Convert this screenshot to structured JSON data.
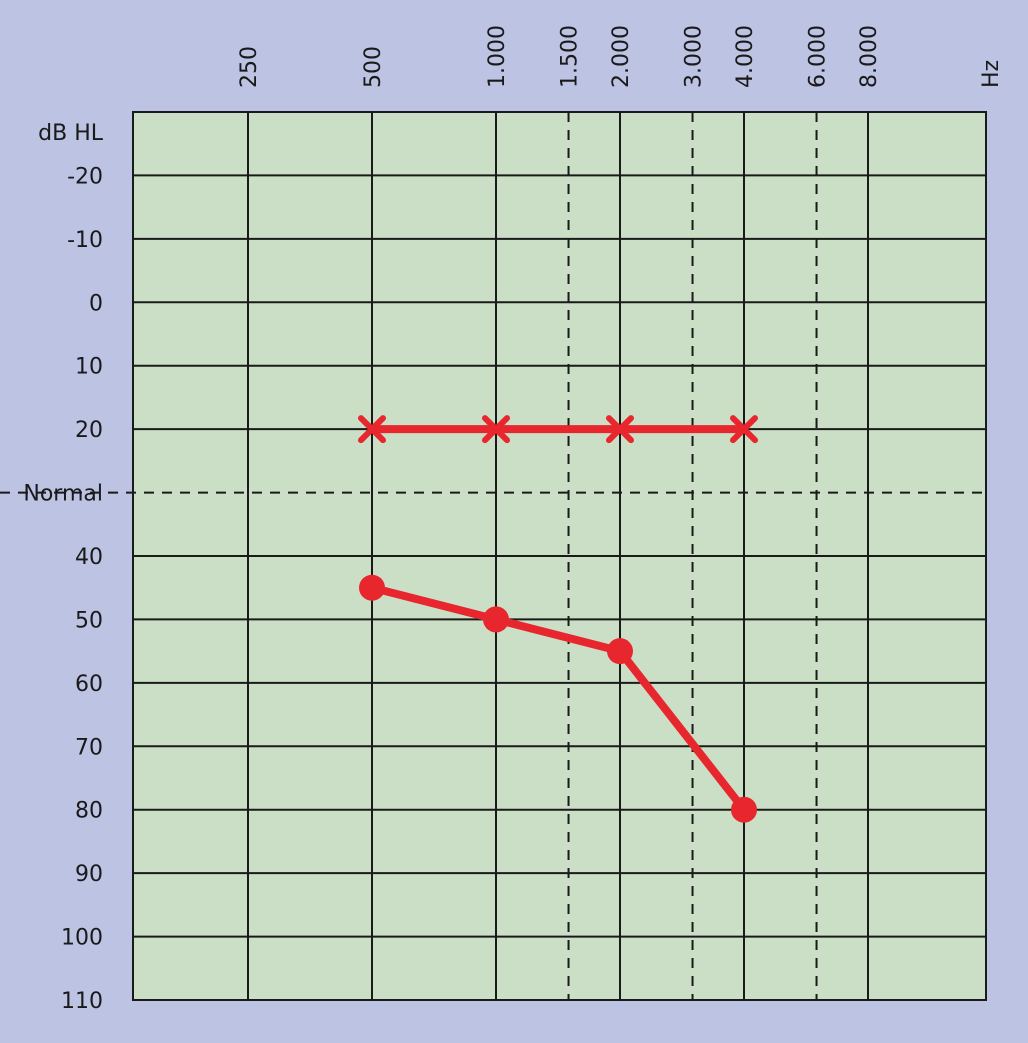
{
  "chart_data": {
    "type": "line",
    "title": "",
    "x_unit_label": "Hz",
    "y_unit_label": "dB HL",
    "x_ticks": [
      {
        "label": "250",
        "value": 250,
        "style": "solid"
      },
      {
        "label": "500",
        "value": 500,
        "style": "solid"
      },
      {
        "label": "1.000",
        "value": 1000,
        "style": "solid"
      },
      {
        "label": "1.500",
        "value": 1500,
        "style": "dashed"
      },
      {
        "label": "2.000",
        "value": 2000,
        "style": "solid"
      },
      {
        "label": "3.000",
        "value": 3000,
        "style": "dashed"
      },
      {
        "label": "4.000",
        "value": 4000,
        "style": "solid"
      },
      {
        "label": "6.000",
        "value": 6000,
        "style": "dashed"
      },
      {
        "label": "8.000",
        "value": 8000,
        "style": "solid"
      }
    ],
    "y_ticks": [
      {
        "label": "-20",
        "value": -20,
        "style": "solid"
      },
      {
        "label": "-10",
        "value": -10,
        "style": "solid"
      },
      {
        "label": "0",
        "value": 0,
        "style": "solid"
      },
      {
        "label": "10",
        "value": 10,
        "style": "solid"
      },
      {
        "label": "20",
        "value": 20,
        "style": "solid"
      },
      {
        "label": "Normal",
        "value": 30,
        "style": "dashed"
      },
      {
        "label": "40",
        "value": 40,
        "style": "solid"
      },
      {
        "label": "50",
        "value": 50,
        "style": "solid"
      },
      {
        "label": "60",
        "value": 60,
        "style": "solid"
      },
      {
        "label": "70",
        "value": 70,
        "style": "solid"
      },
      {
        "label": "80",
        "value": 80,
        "style": "solid"
      },
      {
        "label": "90",
        "value": 90,
        "style": "solid"
      },
      {
        "label": "100",
        "value": 100,
        "style": "solid"
      },
      {
        "label": "110",
        "value": 110,
        "style": "solid"
      }
    ],
    "ylim": [
      -30,
      110
    ],
    "y_inverted": true,
    "x_scale": "log",
    "series": [
      {
        "marker": "x",
        "color": "#e8262d",
        "points": [
          {
            "x": 500,
            "y": 20
          },
          {
            "x": 1000,
            "y": 20
          },
          {
            "x": 2000,
            "y": 20
          },
          {
            "x": 4000,
            "y": 20
          }
        ]
      },
      {
        "marker": "circle",
        "color": "#e8262d",
        "points": [
          {
            "x": 500,
            "y": 45
          },
          {
            "x": 1000,
            "y": 50
          },
          {
            "x": 2000,
            "y": 55
          },
          {
            "x": 4000,
            "y": 80
          }
        ]
      }
    ],
    "colors": {
      "background": "#bcc3e3",
      "plot_area": "#cadfc5",
      "grid": "#1a1a1a"
    }
  }
}
